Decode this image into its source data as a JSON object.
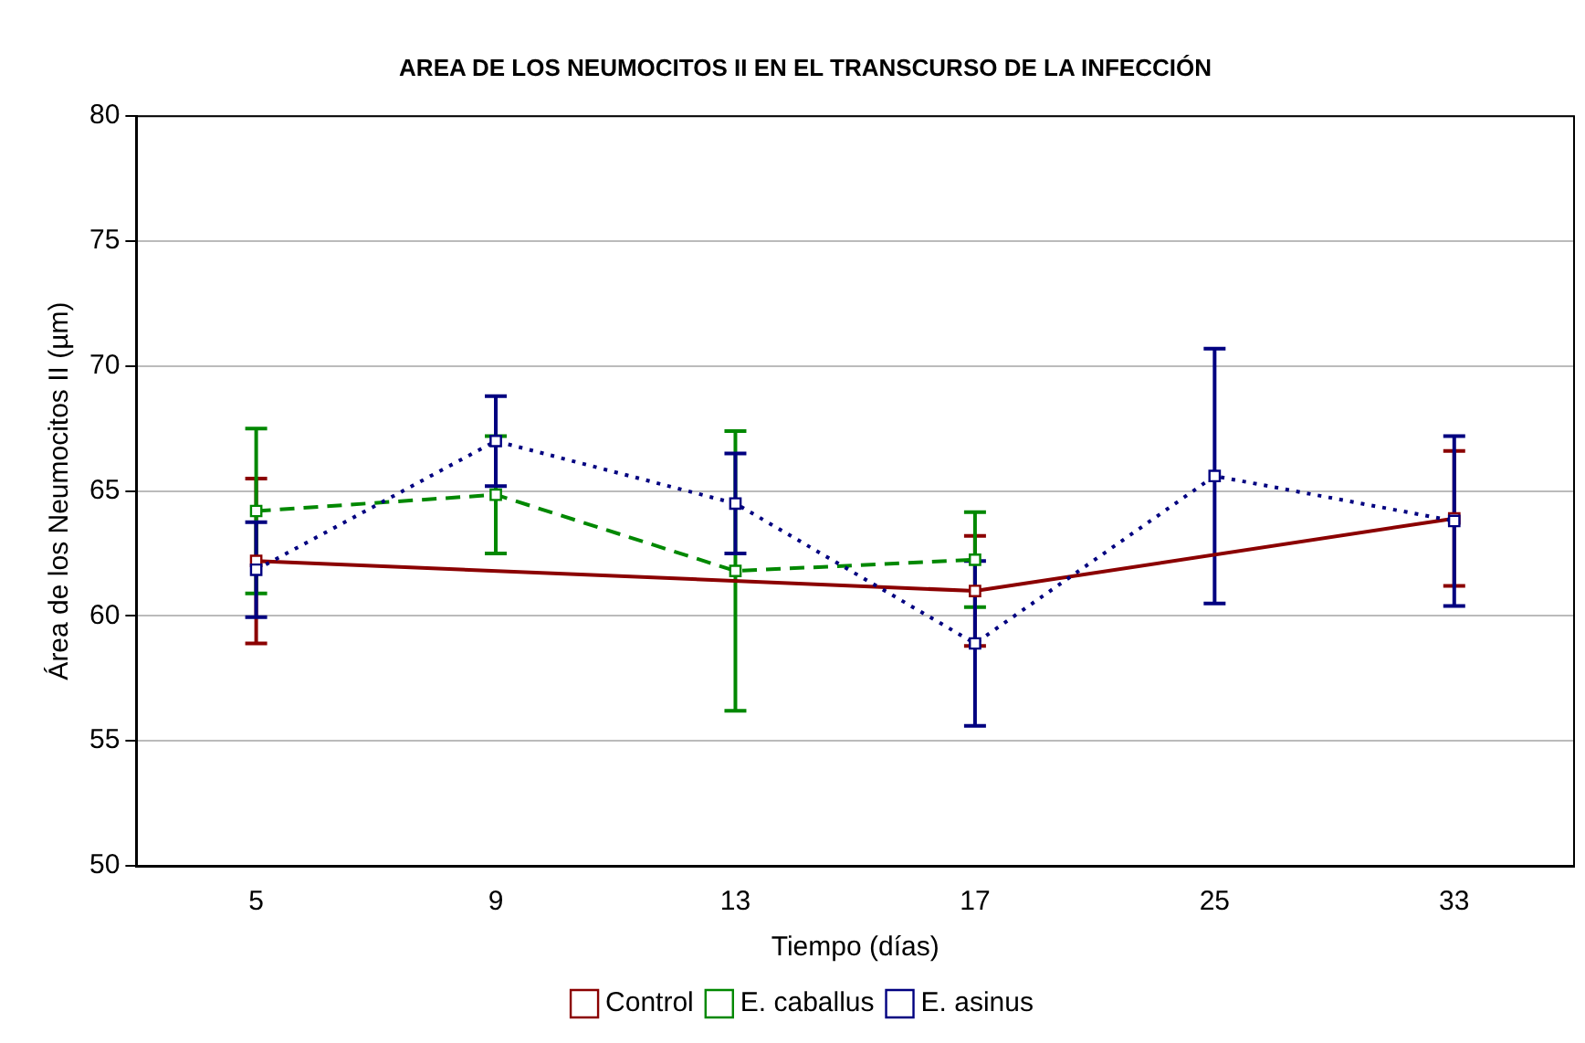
{
  "chart_data": {
    "type": "line",
    "title": "AREA DE LOS NEUMOCITOS II EN EL TRANSCURSO DE LA INFECCIÓN",
    "xlabel": "Tiempo (días)",
    "ylabel": "Área de los Neumocitos II (µm)",
    "categories": [
      "5",
      "9",
      "13",
      "17",
      "25",
      "33"
    ],
    "series": [
      {
        "name": "Control",
        "color": "#8b0000",
        "line_style": "solid",
        "values": [
          62.2,
          null,
          null,
          61.0,
          null,
          63.9
        ],
        "errors": [
          3.3,
          null,
          null,
          2.2,
          null,
          2.7
        ]
      },
      {
        "name": "E. caballus",
        "color": "#008800",
        "line_style": "dashed",
        "values": [
          64.2,
          64.85,
          61.8,
          62.25,
          null,
          null
        ],
        "errors": [
          3.3,
          2.35,
          5.6,
          1.9,
          null,
          null
        ]
      },
      {
        "name": "E. asinus",
        "color": "#000080",
        "line_style": "dotted",
        "values": [
          61.85,
          67.0,
          64.5,
          58.9,
          65.6,
          63.8
        ],
        "errors": [
          1.9,
          1.8,
          2.0,
          3.3,
          5.1,
          3.4
        ]
      }
    ],
    "ylim": [
      50,
      80
    ],
    "yticks": [
      50,
      55,
      60,
      65,
      70,
      75,
      80
    ],
    "grid": "y",
    "legend": "bottom",
    "marker": "square"
  }
}
